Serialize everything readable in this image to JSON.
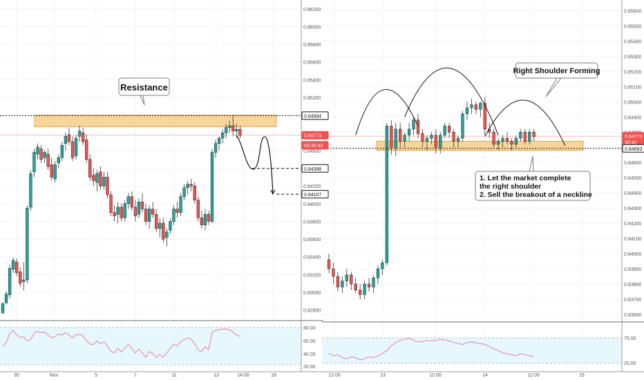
{
  "colors": {
    "bull": "#26a69a",
    "bear": "#ef5350",
    "zone_fill": "#f7c77e",
    "zone_stroke": "#e8a33b",
    "rsi_line": "#e57bb0",
    "rsi_band": "#e6f8fb",
    "grid": "#f0f3f5",
    "axis_text": "#555555",
    "price_tag_bg": "#ffffff"
  },
  "chart_data": [
    {
      "type": "candlestick",
      "y_axis": {
        "ticks": [
          "0.86200",
          "0.86000",
          "0.85800",
          "0.85600",
          "0.85400",
          "0.85200",
          "0.85000",
          "0.84800",
          "0.84600",
          "0.84400",
          "0.84200",
          "0.84000",
          "0.83800",
          "0.83600",
          "0.83400",
          "0.83200",
          "0.83000",
          "0.82800"
        ],
        "range": [
          0.8268,
          0.863
        ]
      },
      "x_axis": {
        "ticks": [
          "30",
          "Nov",
          "5",
          "7",
          "11",
          "13",
          "14:00",
          "18"
        ]
      },
      "price_tags": [
        {
          "id": "resistance",
          "label": "0.84994",
          "value": 0.84994,
          "style": "dark"
        },
        {
          "id": "last",
          "label": "0.84773",
          "value": 0.84773,
          "style": "red"
        },
        {
          "id": "countdown",
          "label": "03:30:42",
          "value": 0.8466,
          "style": "red"
        },
        {
          "id": "target1",
          "label": "0.84398",
          "value": 0.84398,
          "style": "dark"
        },
        {
          "id": "target2",
          "label": "0.84107",
          "value": 0.84107,
          "style": "dark"
        }
      ],
      "resistance_zone": [
        0.8487,
        0.85
      ],
      "annotations": [
        {
          "text": "Resistance"
        }
      ],
      "ohlc": [
        [
          0.8277,
          0.8289,
          0.8275,
          0.8287
        ],
        [
          0.8288,
          0.8301,
          0.8286,
          0.8298
        ],
        [
          0.8297,
          0.8331,
          0.8293,
          0.8327
        ],
        [
          0.8326,
          0.8339,
          0.8322,
          0.8336
        ],
        [
          0.8334,
          0.8338,
          0.8318,
          0.8322
        ],
        [
          0.8323,
          0.8328,
          0.8306,
          0.831
        ],
        [
          0.8312,
          0.8334,
          0.8302,
          0.8314
        ],
        [
          0.8314,
          0.8398,
          0.831,
          0.8395
        ],
        [
          0.8396,
          0.8438,
          0.8392,
          0.8434
        ],
        [
          0.8436,
          0.8462,
          0.843,
          0.8458
        ],
        [
          0.8456,
          0.8468,
          0.845,
          0.8464
        ],
        [
          0.8462,
          0.8466,
          0.8446,
          0.845
        ],
        [
          0.8452,
          0.846,
          0.8446,
          0.8458
        ],
        [
          0.8456,
          0.8462,
          0.8438,
          0.8442
        ],
        [
          0.8444,
          0.8452,
          0.8426,
          0.843
        ],
        [
          0.8428,
          0.8448,
          0.8424,
          0.8444
        ],
        [
          0.8446,
          0.8456,
          0.844,
          0.8452
        ],
        [
          0.8452,
          0.847,
          0.8448,
          0.8466
        ],
        [
          0.8468,
          0.848,
          0.846,
          0.8476
        ],
        [
          0.8478,
          0.8486,
          0.8466,
          0.847
        ],
        [
          0.847,
          0.8476,
          0.8448,
          0.8452
        ],
        [
          0.8454,
          0.8478,
          0.845,
          0.8474
        ],
        [
          0.8476,
          0.8488,
          0.847,
          0.8482
        ],
        [
          0.848,
          0.8486,
          0.8466,
          0.847
        ],
        [
          0.8472,
          0.8478,
          0.8446,
          0.845
        ],
        [
          0.845,
          0.8456,
          0.8426,
          0.843
        ],
        [
          0.8432,
          0.844,
          0.842,
          0.8426
        ],
        [
          0.8424,
          0.8438,
          0.8414,
          0.8434
        ],
        [
          0.8436,
          0.8442,
          0.8416,
          0.842
        ],
        [
          0.842,
          0.8436,
          0.8416,
          0.843
        ],
        [
          0.843,
          0.8436,
          0.8406,
          0.841
        ],
        [
          0.841,
          0.8414,
          0.8386,
          0.839
        ],
        [
          0.839,
          0.8398,
          0.838,
          0.8386
        ],
        [
          0.8388,
          0.8402,
          0.8378,
          0.8396
        ],
        [
          0.8396,
          0.84,
          0.838,
          0.8384
        ],
        [
          0.8384,
          0.8404,
          0.838,
          0.84
        ],
        [
          0.84,
          0.8412,
          0.8394,
          0.8408
        ],
        [
          0.8408,
          0.8414,
          0.8392,
          0.8396
        ],
        [
          0.8396,
          0.8404,
          0.838,
          0.8386
        ],
        [
          0.8388,
          0.8406,
          0.8384,
          0.8402
        ],
        [
          0.8402,
          0.8412,
          0.839,
          0.8394
        ],
        [
          0.8394,
          0.84,
          0.8376,
          0.838
        ],
        [
          0.838,
          0.8398,
          0.8372,
          0.8394
        ],
        [
          0.8394,
          0.8402,
          0.8384,
          0.8388
        ],
        [
          0.8388,
          0.8394,
          0.8368,
          0.8372
        ],
        [
          0.8372,
          0.8384,
          0.8362,
          0.8378
        ],
        [
          0.8378,
          0.8384,
          0.8356,
          0.836
        ],
        [
          0.8362,
          0.8372,
          0.8352,
          0.8368
        ],
        [
          0.837,
          0.8384,
          0.8366,
          0.838
        ],
        [
          0.838,
          0.8398,
          0.8376,
          0.8394
        ],
        [
          0.8394,
          0.8402,
          0.8384,
          0.839
        ],
        [
          0.839,
          0.8412,
          0.8386,
          0.8408
        ],
        [
          0.8408,
          0.8422,
          0.8404,
          0.8418
        ],
        [
          0.8418,
          0.8426,
          0.841,
          0.8422
        ],
        [
          0.8422,
          0.8428,
          0.8414,
          0.842
        ],
        [
          0.842,
          0.8424,
          0.84,
          0.8404
        ],
        [
          0.8404,
          0.8408,
          0.838,
          0.8384
        ],
        [
          0.8384,
          0.8392,
          0.8372,
          0.8376
        ],
        [
          0.8376,
          0.8394,
          0.837,
          0.8388
        ],
        [
          0.8388,
          0.8392,
          0.8376,
          0.838
        ],
        [
          0.838,
          0.8462,
          0.8378,
          0.8458
        ],
        [
          0.8458,
          0.8472,
          0.8452,
          0.8468
        ],
        [
          0.8468,
          0.8476,
          0.846,
          0.8474
        ],
        [
          0.8474,
          0.8484,
          0.8468,
          0.848
        ],
        [
          0.848,
          0.849,
          0.8474,
          0.8486
        ],
        [
          0.8486,
          0.8494,
          0.848,
          0.8488
        ],
        [
          0.8488,
          0.85,
          0.8476,
          0.8482
        ],
        [
          0.8482,
          0.849,
          0.8474,
          0.8484
        ],
        [
          0.8484,
          0.8488,
          0.8474,
          0.8477
        ]
      ],
      "projection_points": [
        [
          67,
          0.8477
        ],
        [
          69,
          0.8466
        ],
        [
          71,
          0.844
        ],
        [
          72,
          0.8439
        ],
        [
          75,
          0.846
        ],
        [
          77,
          0.844
        ],
        [
          77.4,
          0.8411
        ]
      ],
      "rsi": {
        "ticks": [
          "80.00",
          "60.00",
          "40.00",
          "20.00"
        ],
        "levels": [
          80,
          30
        ],
        "values": [
          55,
          60,
          72,
          76,
          70,
          66,
          68,
          62,
          64,
          72,
          75,
          73,
          74,
          70,
          66,
          68,
          71,
          70,
          73,
          70,
          66,
          70,
          71,
          69,
          62,
          58,
          57,
          62,
          58,
          61,
          55,
          48,
          46,
          52,
          47,
          53,
          57,
          52,
          46,
          51,
          46,
          40,
          48,
          45,
          40,
          44,
          40,
          46,
          52,
          58,
          55,
          61,
          64,
          66,
          64,
          58,
          50,
          48,
          54,
          50,
          74,
          76,
          77,
          78,
          78,
          77,
          74,
          70,
          68
        ]
      }
    },
    {
      "type": "candlestick",
      "y_axis": {
        "ticks": [
          "0.85600",
          "0.85500",
          "0.85400",
          "0.85300",
          "0.85200",
          "0.85100",
          "0.85000",
          "0.84900",
          "0.84800",
          "0.84700",
          "0.84600",
          "0.84500",
          "0.84400",
          "0.84300",
          "0.84200",
          "0.84100",
          "0.84000",
          "0.83900",
          "0.83800",
          "0.83700",
          "0.83600"
        ],
        "range": [
          0.8355,
          0.8567
        ]
      },
      "x_axis": {
        "ticks": [
          "12:00",
          "13",
          "12:00",
          "14",
          "12:00",
          "15"
        ]
      },
      "price_tags": [
        {
          "id": "last",
          "label": "0.84773",
          "value": 0.84773,
          "style": "red"
        },
        {
          "id": "countdown",
          "label": "30:42",
          "value": 0.84735,
          "style": "red"
        },
        {
          "id": "neckline",
          "label": "0.84693",
          "value": 0.84693,
          "style": "dark"
        }
      ],
      "neckline_zone": [
        0.8468,
        0.8474
      ],
      "annotations": [
        {
          "text": "Right Shoulder Forming"
        },
        {
          "lines": [
            "1. Let the market complete",
            "the right shoulder",
            "2. Sell the breakout of a neckline"
          ]
        }
      ],
      "ohlc": [
        [
          0.8396,
          0.84,
          0.8387,
          0.839
        ],
        [
          0.839,
          0.8394,
          0.838,
          0.8385
        ],
        [
          0.8385,
          0.8388,
          0.8375,
          0.8378
        ],
        [
          0.8378,
          0.8385,
          0.8374,
          0.8382
        ],
        [
          0.8382,
          0.839,
          0.8378,
          0.8386
        ],
        [
          0.8386,
          0.8388,
          0.8376,
          0.838
        ],
        [
          0.838,
          0.8384,
          0.8374,
          0.8376
        ],
        [
          0.8376,
          0.838,
          0.837,
          0.8373
        ],
        [
          0.8373,
          0.8382,
          0.837,
          0.838
        ],
        [
          0.838,
          0.8384,
          0.8375,
          0.8378
        ],
        [
          0.8378,
          0.8386,
          0.8374,
          0.8384
        ],
        [
          0.8384,
          0.8392,
          0.838,
          0.839
        ],
        [
          0.839,
          0.8396,
          0.8386,
          0.8394
        ],
        [
          0.8394,
          0.8486,
          0.8392,
          0.8484
        ],
        [
          0.8484,
          0.8488,
          0.8465,
          0.847
        ],
        [
          0.847,
          0.8486,
          0.8464,
          0.8482
        ],
        [
          0.8482,
          0.8486,
          0.847,
          0.8474
        ],
        [
          0.8474,
          0.848,
          0.847,
          0.8478
        ],
        [
          0.8478,
          0.8486,
          0.8474,
          0.8482
        ],
        [
          0.8482,
          0.849,
          0.8478,
          0.8488
        ],
        [
          0.8488,
          0.8492,
          0.8476,
          0.8479
        ],
        [
          0.8479,
          0.8482,
          0.847,
          0.8474
        ],
        [
          0.8474,
          0.8478,
          0.8468,
          0.8476
        ],
        [
          0.8476,
          0.848,
          0.8472,
          0.8478
        ],
        [
          0.8478,
          0.8482,
          0.8466,
          0.847
        ],
        [
          0.847,
          0.848,
          0.8466,
          0.8478
        ],
        [
          0.8478,
          0.8486,
          0.8476,
          0.8484
        ],
        [
          0.8484,
          0.8486,
          0.8476,
          0.848
        ],
        [
          0.848,
          0.8482,
          0.847,
          0.8474
        ],
        [
          0.8474,
          0.8478,
          0.847,
          0.8476
        ],
        [
          0.8476,
          0.8494,
          0.8474,
          0.8492
        ],
        [
          0.8492,
          0.85,
          0.8488,
          0.8496
        ],
        [
          0.8496,
          0.8502,
          0.8492,
          0.8498
        ],
        [
          0.8498,
          0.85,
          0.8492,
          0.8495
        ],
        [
          0.8495,
          0.85,
          0.849,
          0.8499
        ],
        [
          0.8499,
          0.8503,
          0.8478,
          0.8482
        ],
        [
          0.8482,
          0.8486,
          0.8476,
          0.848
        ],
        [
          0.848,
          0.8482,
          0.847,
          0.8472
        ],
        [
          0.8472,
          0.8476,
          0.8468,
          0.8474
        ],
        [
          0.8474,
          0.8478,
          0.847,
          0.8476
        ],
        [
          0.8476,
          0.848,
          0.8472,
          0.8474
        ],
        [
          0.8474,
          0.8476,
          0.8468,
          0.8472
        ],
        [
          0.8472,
          0.8478,
          0.847,
          0.8476
        ],
        [
          0.8476,
          0.8482,
          0.8474,
          0.848
        ],
        [
          0.848,
          0.8482,
          0.8472,
          0.8474
        ],
        [
          0.8474,
          0.8482,
          0.8472,
          0.848
        ],
        [
          0.848,
          0.8482,
          0.8474,
          0.8477
        ]
      ],
      "pattern_arcs": [
        [
          6,
          0.8478,
          12,
          0.8508,
          20,
          0.8484
        ],
        [
          17,
          0.849,
          27,
          0.8522,
          38,
          0.8478
        ],
        [
          35,
          0.8477,
          44,
          0.8501,
          53,
          0.8471
        ]
      ],
      "rsi": {
        "ticks": [
          "75.00",
          "25.00"
        ],
        "levels": [
          75,
          25
        ],
        "values": [
          45,
          40,
          42,
          36,
          34,
          38,
          36,
          32,
          34,
          38,
          36,
          40,
          44,
          50,
          60,
          66,
          70,
          72,
          74,
          70,
          67,
          68,
          70,
          69,
          70,
          72,
          71,
          69,
          66,
          64,
          62,
          66,
          67,
          65,
          64,
          62,
          58,
          54,
          50,
          46,
          44,
          42,
          40,
          44,
          42,
          40,
          38
        ]
      }
    }
  ]
}
